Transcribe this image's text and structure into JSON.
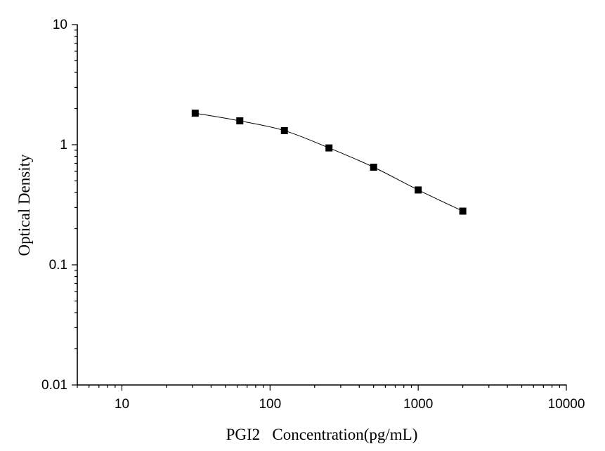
{
  "chart_data": {
    "type": "scatter",
    "title": "",
    "xlabel": "PGI2   Concentration(pg/mL)",
    "ylabel": "Optical Density",
    "xscale": "log",
    "yscale": "log",
    "xlim": [
      5,
      10000
    ],
    "ylim": [
      0.01,
      10
    ],
    "x_ticks": [
      10,
      100,
      1000,
      10000
    ],
    "x_tick_labels": [
      "10",
      "100",
      "1000",
      "10000"
    ],
    "y_ticks": [
      0.01,
      0.1,
      1,
      10
    ],
    "y_tick_labels": [
      "0.01",
      "0.1",
      "1",
      "10"
    ],
    "grid": false,
    "legend": "none",
    "marker": "square",
    "line": "smooth",
    "series": [
      {
        "x": [
          31.25,
          62.5,
          125,
          250,
          500,
          1000,
          2000
        ],
        "y": [
          1.83,
          1.58,
          1.31,
          0.94,
          0.65,
          0.42,
          0.28
        ]
      }
    ]
  }
}
